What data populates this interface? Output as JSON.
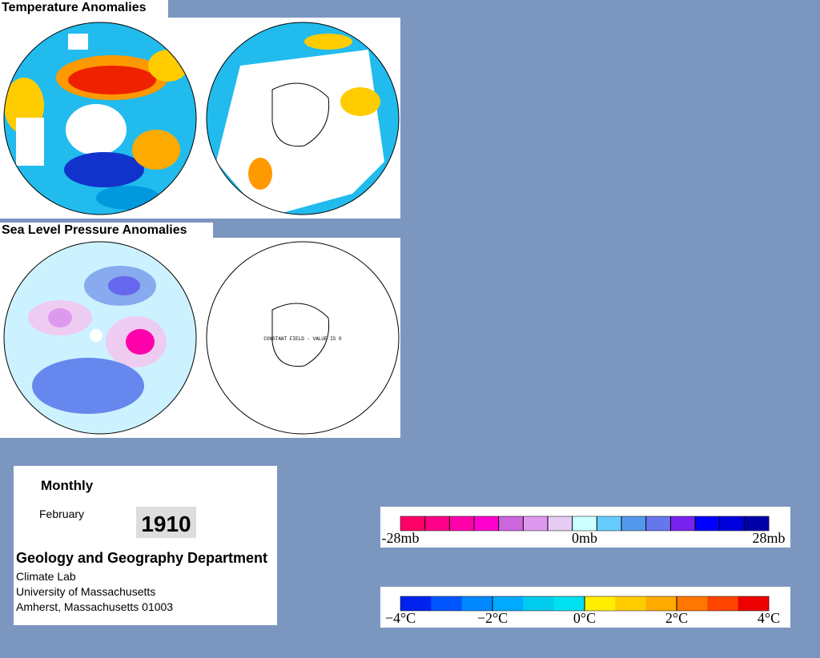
{
  "panels": {
    "temperature": {
      "title": "Temperature Anomalies"
    },
    "pressure": {
      "title": "Sea Level Pressure Anomalies",
      "note": "CONSTANT FIELD - VALUE IS 0"
    }
  },
  "info": {
    "heading": "Monthly",
    "month": "February",
    "year": "1910",
    "department": "Geology and Geography Department",
    "lines": [
      "Climate Lab",
      "University of Massachusetts",
      "Amherst, Massachusetts 01003"
    ]
  },
  "colorbars": {
    "pressure": {
      "labels": [
        "-28mb",
        "0mb",
        "28mb"
      ],
      "colors": [
        "#ff0066",
        "#ff0088",
        "#ff00aa",
        "#ff00cc",
        "#cc66dd",
        "#dd99ee",
        "#e6ccf2",
        "#ccffff",
        "#66ccff",
        "#5599ee",
        "#6677ee",
        "#7722ee",
        "#0000ff",
        "#0000dd",
        "#0000aa"
      ]
    },
    "temperature": {
      "labels": [
        "−4°C",
        "−2°C",
        "0°C",
        "2°C",
        "4°C"
      ],
      "colors": [
        "#0022ee",
        "#0055ff",
        "#0088ff",
        "#00aaff",
        "#00ccee",
        "#00e0ee",
        "#ffee00",
        "#ffcc00",
        "#ffaa00",
        "#ff7700",
        "#ff4400",
        "#ee0000"
      ]
    }
  }
}
